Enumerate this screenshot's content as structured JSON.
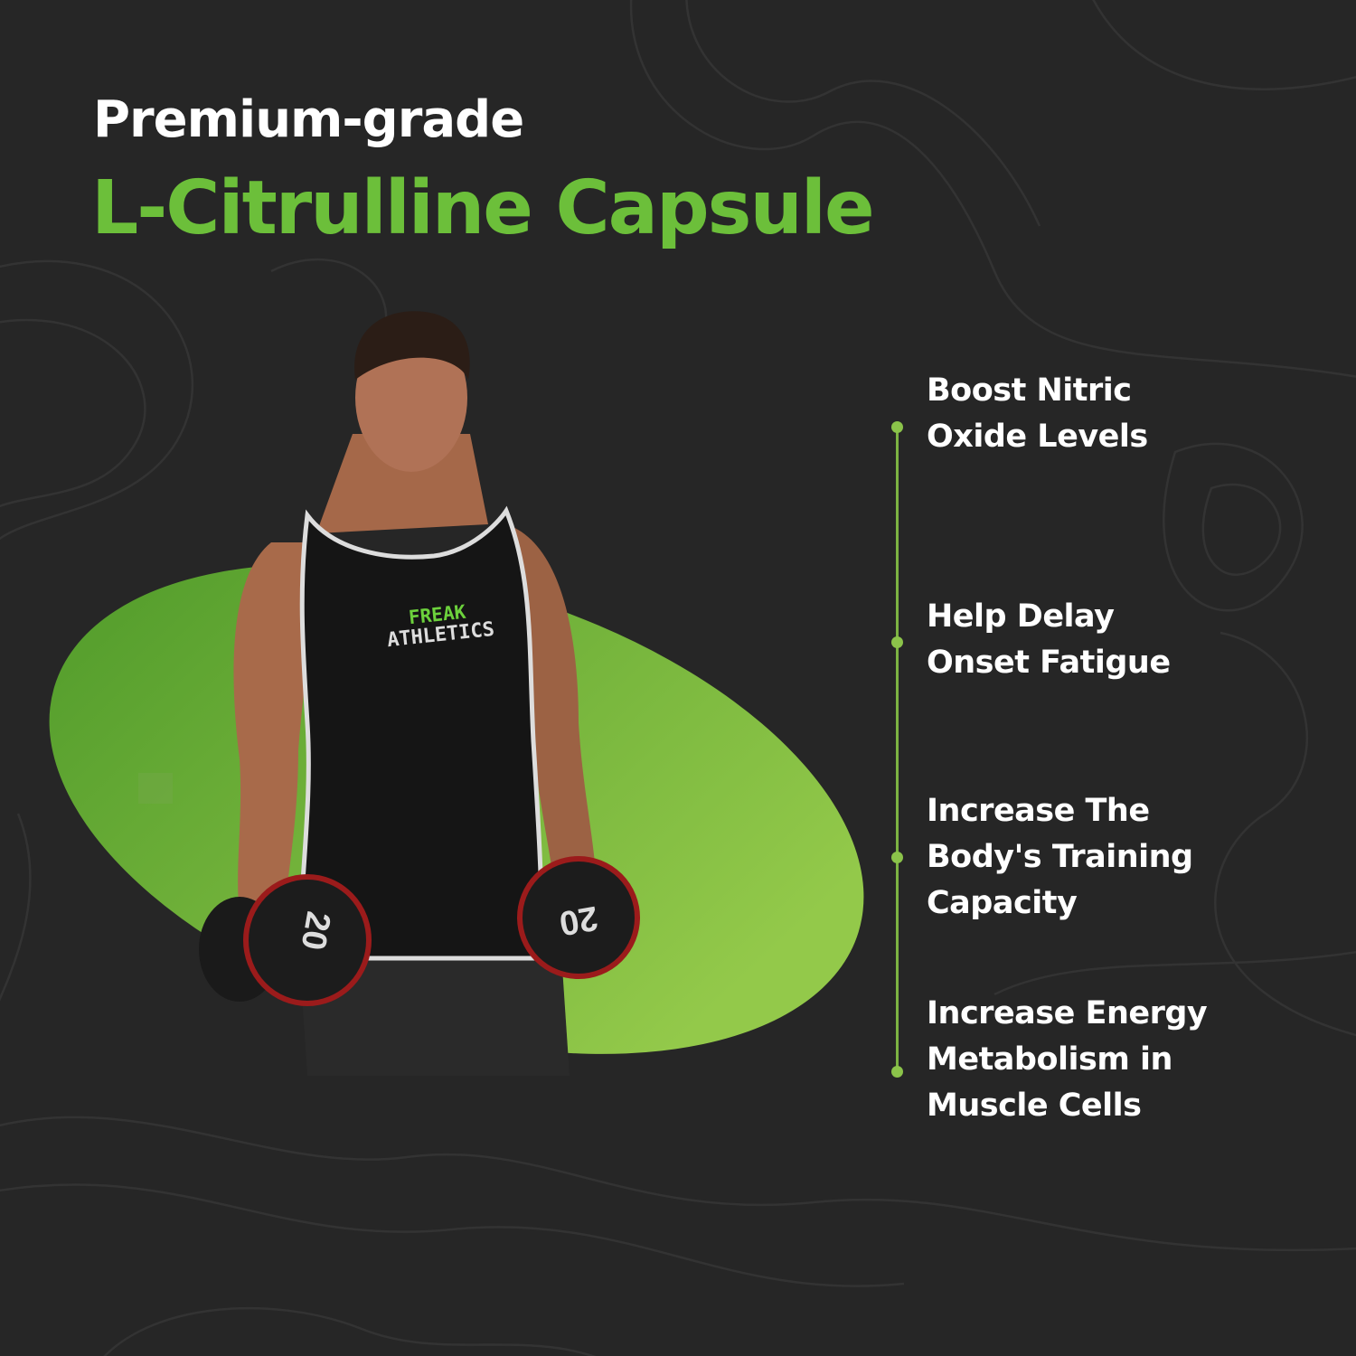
{
  "header": {
    "line1": "Premium-grade",
    "line2": "L-Citrulline Capsule"
  },
  "benefits": [
    {
      "label": "Boost Nitric Oxide Levels",
      "lines": [
        "Boost Nitric",
        "Oxide Levels"
      ]
    },
    {
      "label": "Help Delay Onset Fatigue",
      "lines": [
        "Help Delay",
        "Onset Fatigue"
      ]
    },
    {
      "label": "Increase The Body's Training Capacity",
      "lines": [
        "Increase The",
        "Body's Training",
        "Capacity"
      ]
    },
    {
      "label": "Increase Energy Metabolism in Muscle Cells",
      "lines": [
        "Increase Energy",
        "Metabolism in",
        "Muscle Cells"
      ]
    }
  ],
  "photo": {
    "shirt_logo_line1": "FREAK",
    "shirt_logo_line2": "ATHLETICS",
    "dumbbell_weight": "20"
  },
  "colors": {
    "background": "#262626",
    "accent_green": "#6cbf3a",
    "timeline": "#7cb342",
    "ellipse_dark": "#4f9a2a",
    "ellipse_light": "#93c94a"
  }
}
